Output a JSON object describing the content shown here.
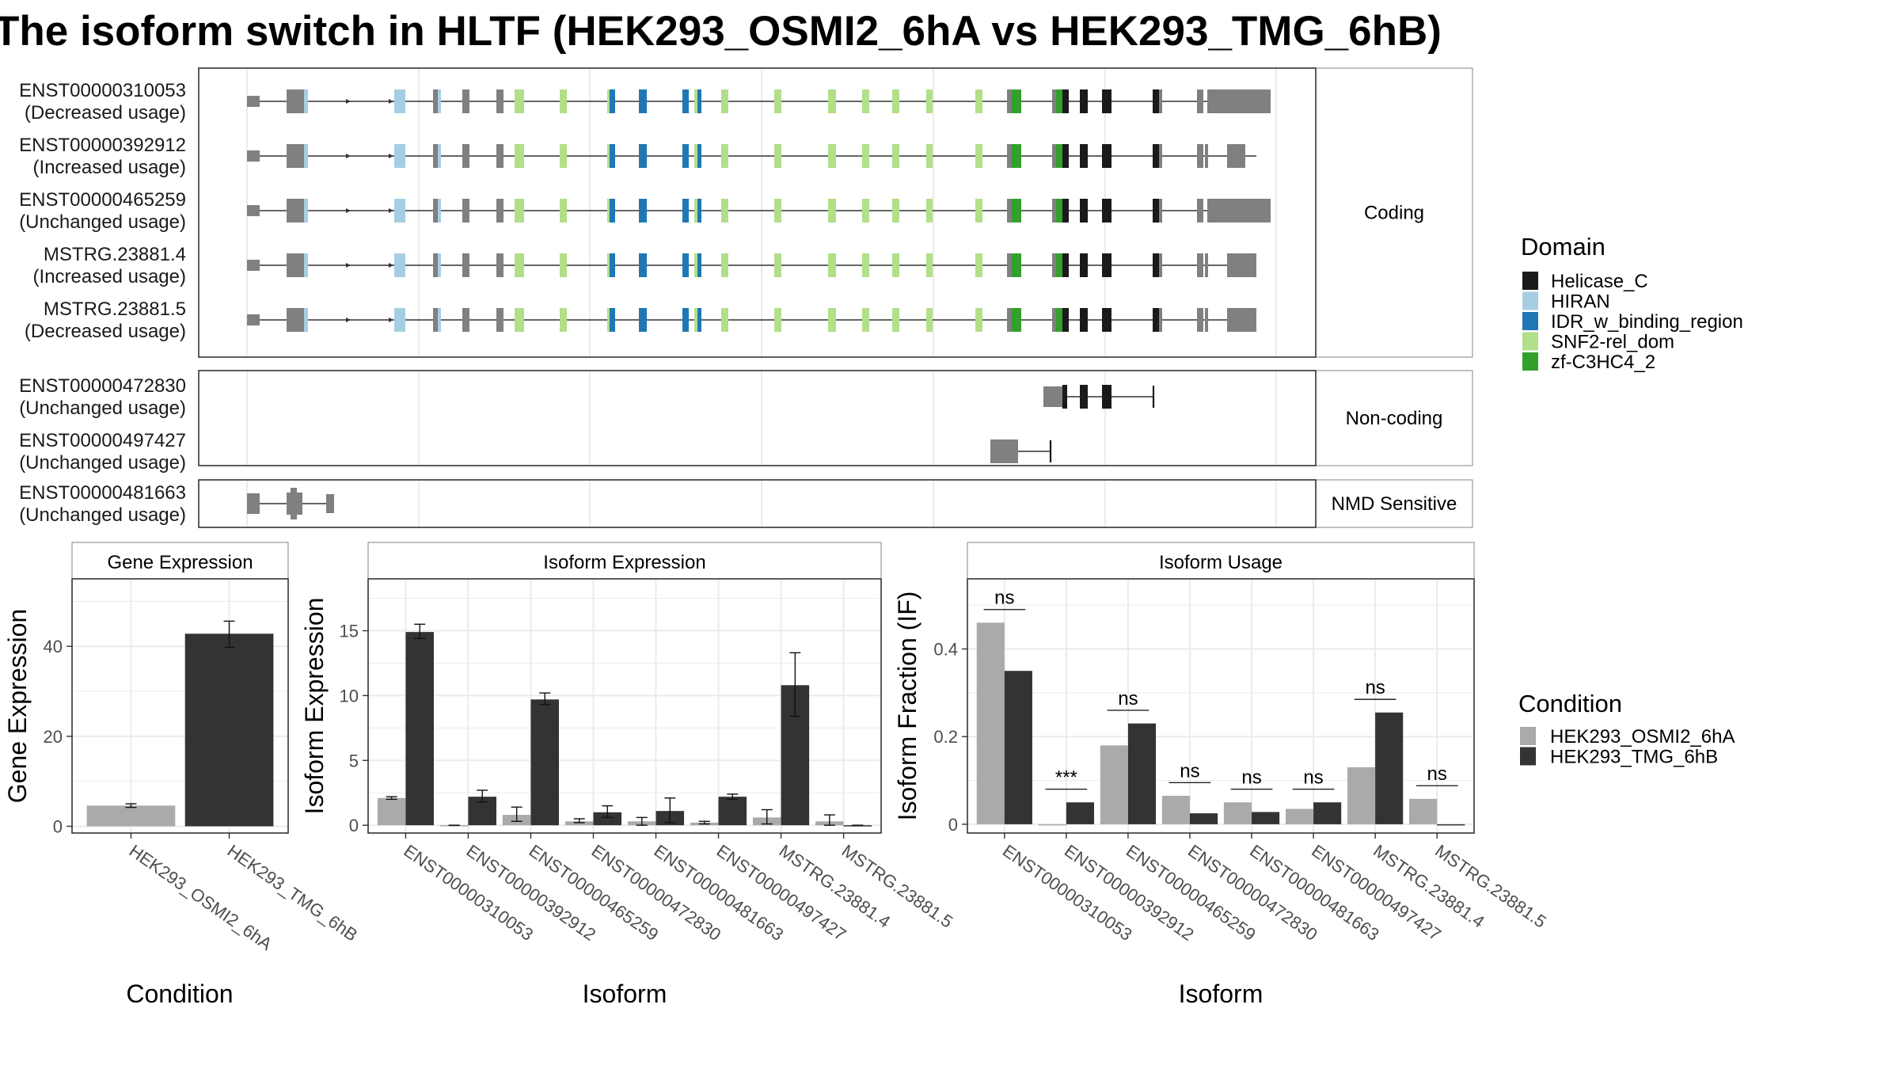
{
  "title": "The isoform switch in HLTF (HEK293_OSMI2_6hA vs HEK293_TMG_6hB)",
  "colors": {
    "exon": "#808080",
    "Helicase_C": "#1a1a1a",
    "HIRAN": "#a6cee3",
    "IDR_w_binding_region": "#1f78b4",
    "SNF2-rel_dom": "#b2df8a",
    "zf-C3HC4_2": "#33a02c",
    "cond1": "#aaaaaa",
    "cond2": "#333333"
  },
  "structure": {
    "panels": [
      {
        "label": "Coding",
        "rows": [
          {
            "id": "ENST00000310053",
            "usage": "(Decreased usage)"
          },
          {
            "id": "ENST00000392912",
            "usage": "(Increased usage)"
          },
          {
            "id": "ENST00000465259",
            "usage": "(Unchanged usage)"
          },
          {
            "id": "MSTRG.23881.4",
            "usage": "(Increased usage)"
          },
          {
            "id": "MSTRG.23881.5",
            "usage": "(Decreased usage)"
          }
        ]
      },
      {
        "label": "Non-coding",
        "rows": [
          {
            "id": "ENST00000472830",
            "usage": "(Unchanged usage)"
          },
          {
            "id": "ENST00000497427",
            "usage": "(Unchanged usage)"
          }
        ]
      },
      {
        "label": "NMD Sensitive",
        "rows": [
          {
            "id": "ENST00000481663",
            "usage": "(Unchanged usage)"
          }
        ]
      }
    ]
  },
  "legend_domain": {
    "title": "Domain",
    "items": [
      {
        "label": "Helicase_C",
        "color": "#1a1a1a"
      },
      {
        "label": "HIRAN",
        "color": "#a6cee3"
      },
      {
        "label": "IDR_w_binding_region",
        "color": "#1f78b4"
      },
      {
        "label": "SNF2-rel_dom",
        "color": "#b2df8a"
      },
      {
        "label": "zf-C3HC4_2",
        "color": "#33a02c"
      }
    ]
  },
  "legend_condition": {
    "title": "Condition",
    "items": [
      {
        "label": "HEK293_OSMI2_6hA",
        "color": "#aaaaaa"
      },
      {
        "label": "HEK293_TMG_6hB",
        "color": "#333333"
      }
    ]
  },
  "chart_data": [
    {
      "type": "bar",
      "title": "Gene Expression",
      "xlabel": "Condition",
      "ylabel": "Gene Expression",
      "categories": [
        "HEK293_OSMI2_6hA",
        "HEK293_TMG_6hB"
      ],
      "values": [
        4.6,
        42.8
      ],
      "errors": [
        [
          4.2,
          5.0
        ],
        [
          39.8,
          45.6
        ]
      ],
      "ylim": [
        -1.5,
        55
      ],
      "yticks": [
        0,
        20,
        40
      ],
      "grid": true
    },
    {
      "type": "bar",
      "title": "Isoform Expression",
      "xlabel": "Isoform",
      "ylabel": "Isoform Expression",
      "categories": [
        "ENST00000310053",
        "ENST00000392912",
        "ENST00000465259",
        "ENST00000472830",
        "ENST00000481663",
        "ENST00000497427",
        "MSTRG.23881.4",
        "MSTRG.23881.5"
      ],
      "series": [
        {
          "name": "HEK293_OSMI2_6hA",
          "values": [
            2.1,
            0.0,
            0.8,
            0.3,
            0.3,
            0.2,
            0.6,
            0.3
          ],
          "errors": [
            [
              2.0,
              2.2
            ],
            [
              0.0,
              0.0
            ],
            [
              0.3,
              1.4
            ],
            [
              0.2,
              0.5
            ],
            [
              0.0,
              0.6
            ],
            [
              0.1,
              0.3
            ],
            [
              0.1,
              1.2
            ],
            [
              0.0,
              0.8
            ]
          ]
        },
        {
          "name": "HEK293_TMG_6hB",
          "values": [
            14.9,
            2.2,
            9.7,
            1.0,
            1.1,
            2.2,
            10.8,
            0.0
          ],
          "errors": [
            [
              14.4,
              15.5
            ],
            [
              1.8,
              2.7
            ],
            [
              9.3,
              10.2
            ],
            [
              0.6,
              1.5
            ],
            [
              0.2,
              2.1
            ],
            [
              2.0,
              2.4
            ],
            [
              8.4,
              13.3
            ],
            [
              0.0,
              0.0
            ]
          ]
        }
      ],
      "ylim": [
        -0.6,
        19
      ],
      "yticks": [
        0,
        5,
        10,
        15
      ],
      "grid": true
    },
    {
      "type": "bar",
      "title": "Isoform Usage",
      "xlabel": "Isoform",
      "ylabel": "Isoform Fraction (IF)",
      "categories": [
        "ENST00000310053",
        "ENST00000392912",
        "ENST00000465259",
        "ENST00000472830",
        "ENST00000481663",
        "ENST00000497427",
        "MSTRG.23881.4",
        "MSTRG.23881.5"
      ],
      "series": [
        {
          "name": "HEK293_OSMI2_6hA",
          "values": [
            0.46,
            0.0,
            0.18,
            0.065,
            0.05,
            0.035,
            0.13,
            0.058
          ]
        },
        {
          "name": "HEK293_TMG_6hB",
          "values": [
            0.35,
            0.05,
            0.23,
            0.025,
            0.028,
            0.05,
            0.255,
            0.0
          ]
        }
      ],
      "annotations": [
        "ns",
        "***",
        "ns",
        "ns",
        "ns",
        "ns",
        "ns",
        "ns"
      ],
      "ylim": [
        -0.02,
        0.56
      ],
      "yticks": [
        0.0,
        0.2,
        0.4
      ],
      "grid": true
    }
  ]
}
